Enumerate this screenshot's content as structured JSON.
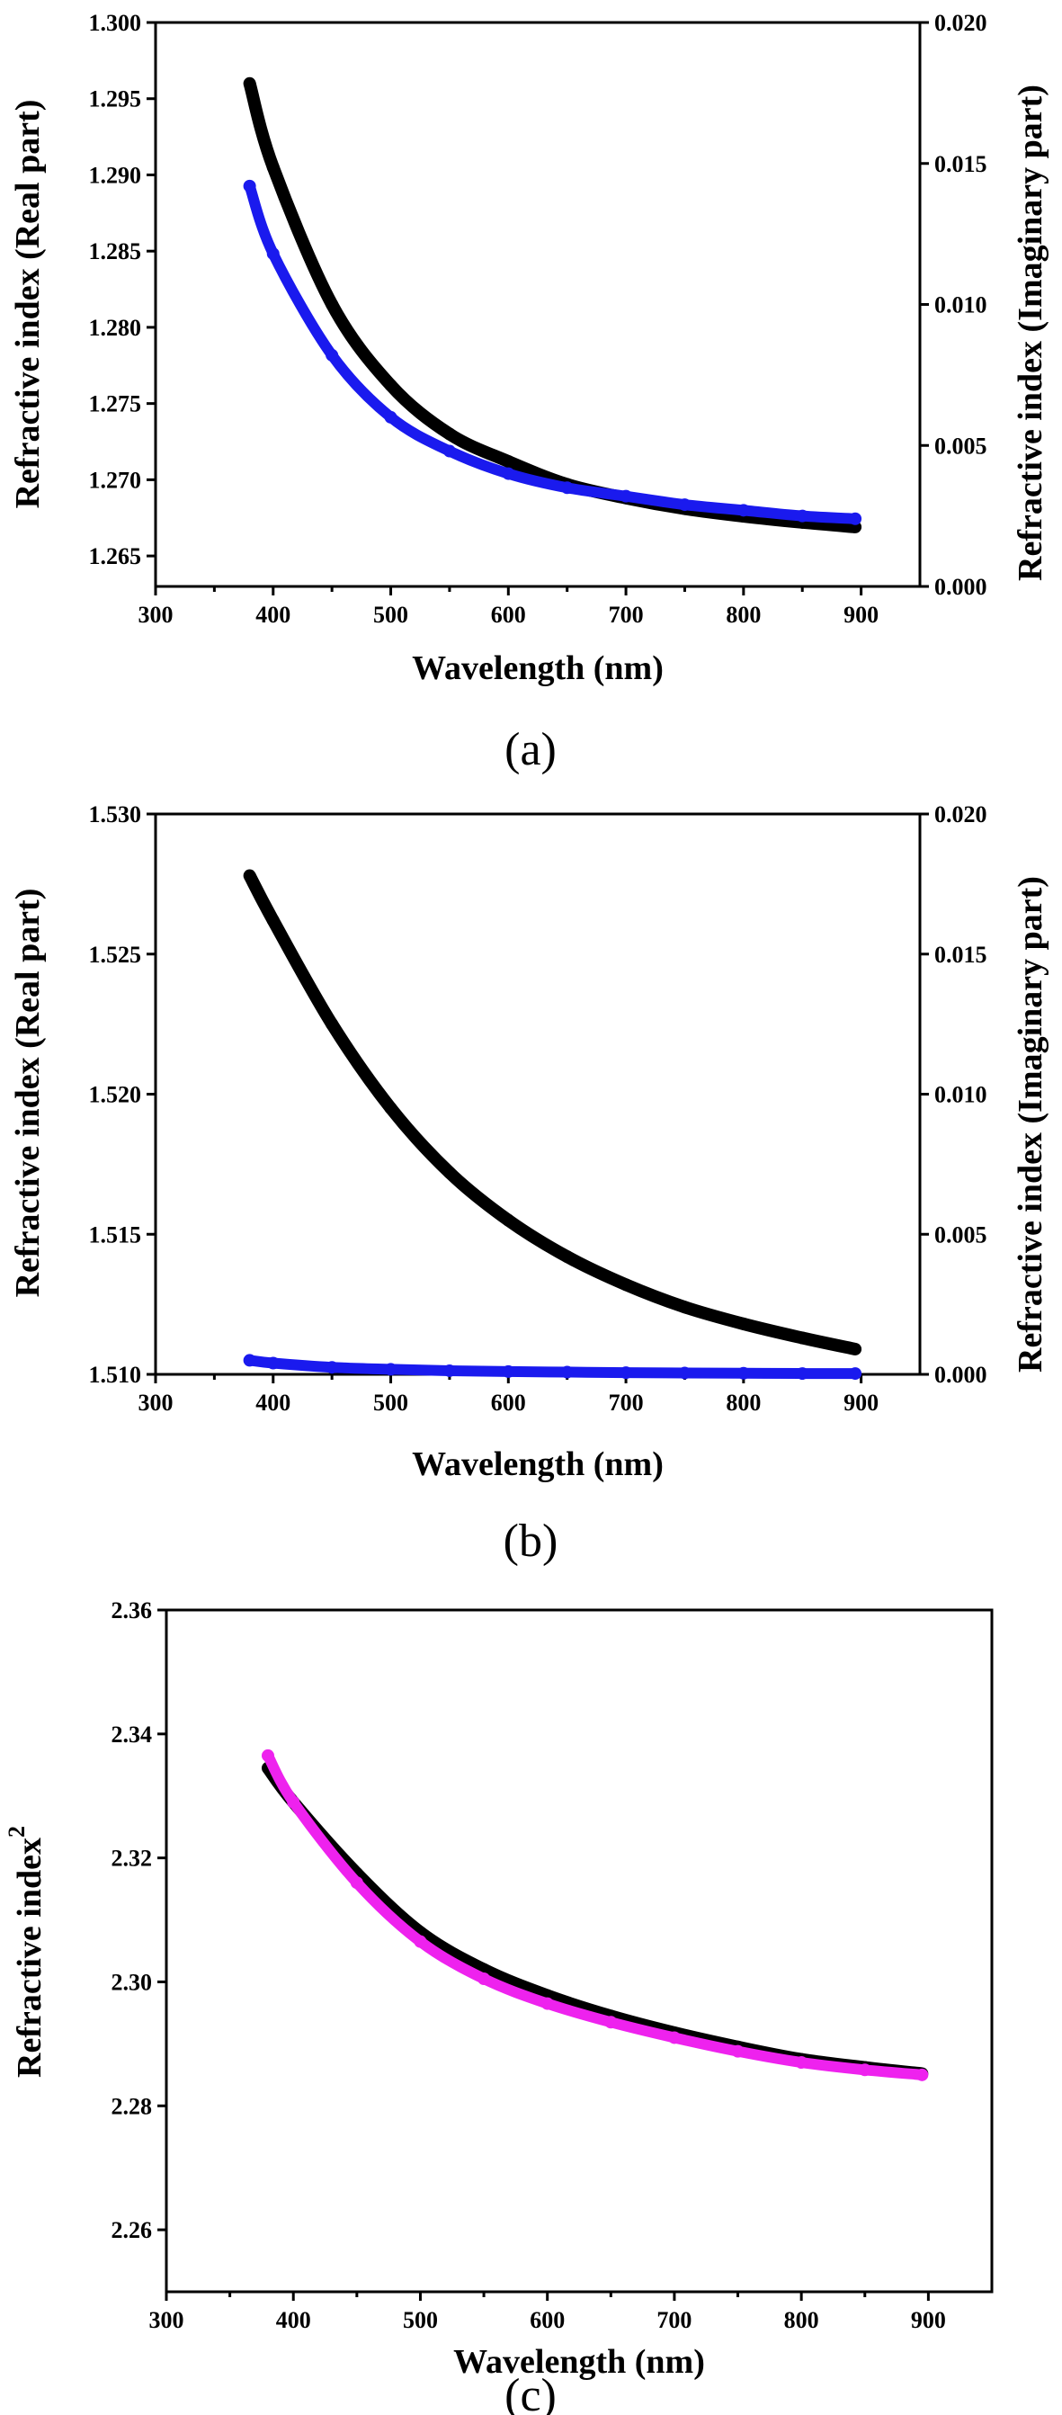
{
  "chart_data": [
    {
      "type": "line",
      "panel": "(a)",
      "xlabel": "Wavelength (nm)",
      "ylabel": "Refractive index (Real part)",
      "y2label": "Refractive index (Imaginary part)",
      "xlim": [
        300,
        950
      ],
      "ylim": [
        1.263,
        1.3
      ],
      "y2lim": [
        0.0,
        0.02
      ],
      "x_ticks": [
        "300",
        "400",
        "500",
        "600",
        "700",
        "800",
        "900"
      ],
      "y_ticks": [
        "1.265",
        "1.270",
        "1.275",
        "1.280",
        "1.285",
        "1.290",
        "1.295",
        "1.300"
      ],
      "y2_ticks": [
        "0.000",
        "0.005",
        "0.010",
        "0.015",
        "0.020"
      ],
      "grid": false,
      "series": [
        {
          "axis": "left",
          "color": "#000000",
          "style": "thick",
          "x": [
            380,
            400,
            450,
            500,
            550,
            600,
            650,
            700,
            750,
            800,
            850,
            895
          ],
          "y": [
            1.296,
            1.2905,
            1.2815,
            1.2762,
            1.273,
            1.2712,
            1.2697,
            1.2688,
            1.2681,
            1.2676,
            1.2672,
            1.2669
          ]
        },
        {
          "axis": "right",
          "color": "#1a1aee",
          "style": "dots",
          "x": [
            380,
            400,
            450,
            500,
            550,
            600,
            650,
            700,
            750,
            800,
            850,
            895
          ],
          "y": [
            0.0142,
            0.0118,
            0.0082,
            0.006,
            0.0048,
            0.004,
            0.0035,
            0.0032,
            0.0029,
            0.0027,
            0.0025,
            0.0024
          ]
        }
      ]
    },
    {
      "type": "line",
      "panel": "(b)",
      "xlabel": "Wavelength (nm)",
      "ylabel": "Refractive index (Real part)",
      "y2label": "Refractive index (Imaginary part)",
      "xlim": [
        300,
        950
      ],
      "ylim": [
        1.51,
        1.53
      ],
      "y2lim": [
        0.0,
        0.02
      ],
      "x_ticks": [
        "300",
        "400",
        "500",
        "600",
        "700",
        "800",
        "900"
      ],
      "y_ticks": [
        "1.510",
        "1.515",
        "1.520",
        "1.525",
        "1.530"
      ],
      "y2_ticks": [
        "0.000",
        "0.005",
        "0.010",
        "0.015",
        "0.020"
      ],
      "grid": false,
      "series": [
        {
          "axis": "left",
          "color": "#000000",
          "style": "thick",
          "x": [
            380,
            400,
            450,
            500,
            550,
            600,
            650,
            700,
            750,
            800,
            850,
            895
          ],
          "y": [
            1.5278,
            1.5262,
            1.5225,
            1.5195,
            1.5172,
            1.5155,
            1.5142,
            1.5132,
            1.5124,
            1.5118,
            1.5113,
            1.5109
          ]
        },
        {
          "axis": "right",
          "color": "#1a1aee",
          "style": "dots",
          "x": [
            380,
            400,
            450,
            500,
            550,
            600,
            650,
            700,
            750,
            800,
            850,
            895
          ],
          "y": [
            0.0005,
            0.0004,
            0.00025,
            0.00018,
            0.00013,
            0.0001,
            8e-05,
            6e-05,
            5e-05,
            4e-05,
            3e-05,
            3e-05
          ]
        }
      ]
    },
    {
      "type": "line",
      "panel": "(c)",
      "xlabel": "Wavelength (nm)",
      "ylabel": "Refractive index",
      "ylabel_sup": "2",
      "xlim": [
        300,
        950
      ],
      "ylim": [
        2.25,
        2.36
      ],
      "x_ticks": [
        "300",
        "400",
        "500",
        "600",
        "700",
        "800",
        "900"
      ],
      "y_ticks": [
        "2.26",
        "2.28",
        "2.30",
        "2.32",
        "2.34",
        "2.36"
      ],
      "grid": false,
      "series": [
        {
          "axis": "left",
          "color": "#000000",
          "style": "thick",
          "x": [
            380,
            400,
            450,
            500,
            550,
            600,
            650,
            700,
            750,
            800,
            850,
            895
          ],
          "y": [
            2.3345,
            2.329,
            2.3175,
            2.308,
            2.302,
            2.2978,
            2.2945,
            2.2918,
            2.2895,
            2.2875,
            2.2862,
            2.2852
          ]
        },
        {
          "axis": "left",
          "color": "#ee22ee",
          "style": "dots",
          "x": [
            380,
            400,
            450,
            500,
            550,
            600,
            650,
            700,
            750,
            800,
            850,
            895
          ],
          "y": [
            2.3365,
            2.329,
            2.316,
            2.3065,
            2.3005,
            2.2965,
            2.2935,
            2.291,
            2.2888,
            2.287,
            2.2858,
            2.285
          ]
        }
      ]
    }
  ]
}
